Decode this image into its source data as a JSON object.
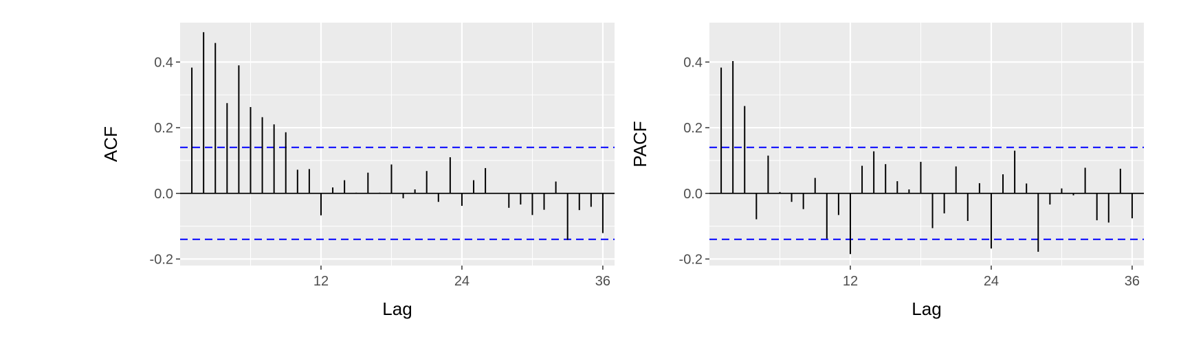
{
  "chart_data": [
    {
      "type": "bar",
      "subtype": "correlogram",
      "ylabel": "ACF",
      "xlabel": "Lag",
      "xlim": [
        0,
        37
      ],
      "ylim": [
        -0.22,
        0.52
      ],
      "x_ticks": [
        12,
        24,
        36
      ],
      "y_ticks": [
        -0.2,
        0.0,
        0.2,
        0.4
      ],
      "y_tick_labels": [
        "-0.2",
        "0.0",
        "0.2",
        "0.4"
      ],
      "x_tick_labels": [
        "12",
        "24",
        "36"
      ],
      "confidence_bound": 0.14,
      "lags": [
        1,
        2,
        3,
        4,
        5,
        6,
        7,
        8,
        9,
        10,
        11,
        12,
        13,
        14,
        15,
        16,
        17,
        18,
        19,
        20,
        21,
        22,
        23,
        24,
        25,
        26,
        27,
        28,
        29,
        30,
        31,
        32,
        33,
        34,
        35,
        36
      ],
      "values": [
        0.383,
        0.491,
        0.458,
        0.275,
        0.39,
        0.263,
        0.232,
        0.21,
        0.186,
        0.072,
        0.074,
        -0.067,
        0.018,
        0.04,
        0.002,
        0.063,
        0.002,
        0.088,
        -0.015,
        0.012,
        0.068,
        -0.026,
        0.11,
        -0.038,
        0.04,
        0.077,
        0.001,
        -0.044,
        -0.034,
        -0.066,
        -0.05,
        0.036,
        -0.142,
        -0.051,
        -0.041,
        -0.121
      ],
      "grid": true,
      "colors": {
        "panel": "#ebebeb",
        "grid": "#ffffff",
        "bars": "#000000",
        "bounds": "#0000ff"
      }
    },
    {
      "type": "bar",
      "subtype": "correlogram",
      "ylabel": "PACF",
      "xlabel": "Lag",
      "xlim": [
        0,
        37
      ],
      "ylim": [
        -0.22,
        0.52
      ],
      "x_ticks": [
        12,
        24,
        36
      ],
      "y_ticks": [
        -0.2,
        0.0,
        0.2,
        0.4
      ],
      "y_tick_labels": [
        "-0.2",
        "0.0",
        "0.2",
        "0.4"
      ],
      "x_tick_labels": [
        "12",
        "24",
        "36"
      ],
      "confidence_bound": 0.14,
      "lags": [
        1,
        2,
        3,
        4,
        5,
        6,
        7,
        8,
        9,
        10,
        11,
        12,
        13,
        14,
        15,
        16,
        17,
        18,
        19,
        20,
        21,
        22,
        23,
        24,
        25,
        26,
        27,
        28,
        29,
        30,
        31,
        32,
        33,
        34,
        35,
        36
      ],
      "values": [
        0.383,
        0.403,
        0.266,
        -0.079,
        0.115,
        0.004,
        -0.026,
        -0.048,
        0.047,
        -0.138,
        -0.066,
        -0.185,
        0.084,
        0.128,
        0.089,
        0.037,
        0.012,
        0.096,
        -0.106,
        -0.061,
        0.082,
        -0.084,
        0.031,
        -0.168,
        0.058,
        0.13,
        0.03,
        -0.178,
        -0.034,
        0.015,
        -0.006,
        0.078,
        -0.082,
        -0.089,
        0.075,
        -0.076
      ],
      "grid": true,
      "colors": {
        "panel": "#ebebeb",
        "grid": "#ffffff",
        "bars": "#000000",
        "bounds": "#0000ff"
      }
    }
  ]
}
